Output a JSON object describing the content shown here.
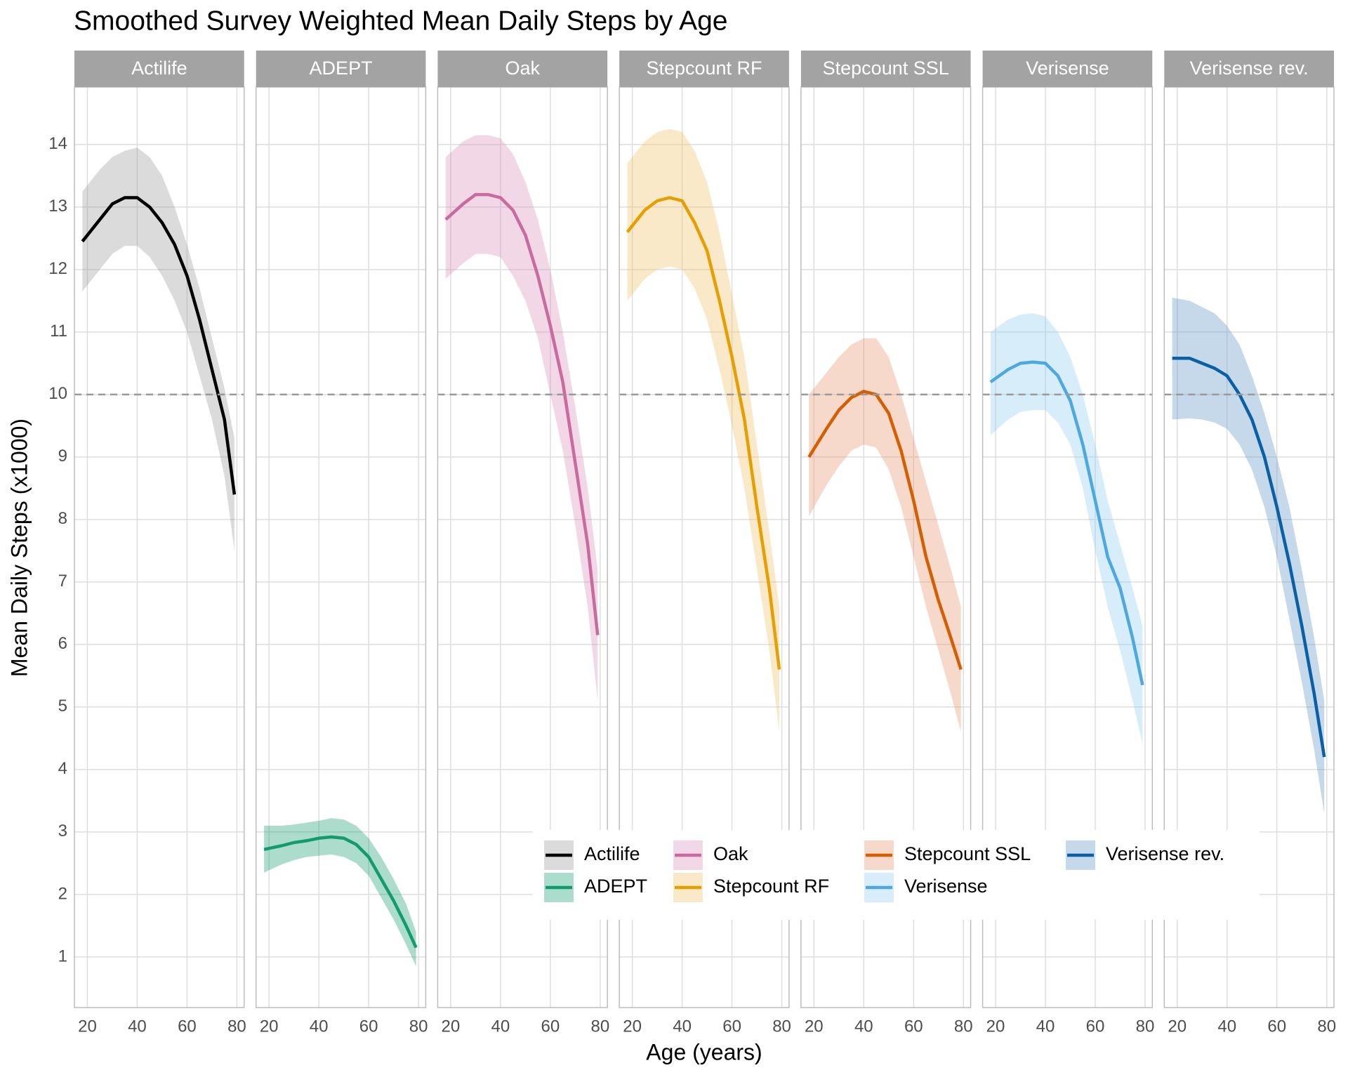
{
  "chart_data": {
    "type": "line",
    "title": "Smoothed Survey Weighted Mean Daily Steps by Age",
    "x_label": "Age (years)",
    "y_label": "Mean Daily Steps (x1000)",
    "x": [
      18,
      25,
      30,
      35,
      40,
      45,
      50,
      55,
      60,
      65,
      70,
      75,
      79
    ],
    "xlim": [
      14.8,
      82.9
    ],
    "xticks": [
      20,
      40,
      60,
      80
    ],
    "ylim": [
      0.19,
      14.92
    ],
    "yticks": [
      1,
      2,
      3,
      4,
      5,
      6,
      7,
      8,
      9,
      10,
      11,
      12,
      13,
      14
    ],
    "hline": 10,
    "grid": true,
    "series": [
      {
        "name": "Actilife",
        "color": "#000000",
        "fill": "#999999",
        "values": [
          12.45,
          12.8,
          13.05,
          13.15,
          13.15,
          13.0,
          12.75,
          12.4,
          11.9,
          11.2,
          10.4,
          9.6,
          8.4
        ],
        "upper": [
          13.25,
          13.6,
          13.8,
          13.9,
          13.95,
          13.8,
          13.5,
          13.0,
          12.4,
          11.7,
          10.9,
          10.1,
          9.3
        ],
        "lower": [
          11.65,
          12.0,
          12.25,
          12.38,
          12.38,
          12.2,
          11.9,
          11.5,
          11.0,
          10.3,
          9.6,
          8.7,
          7.5
        ]
      },
      {
        "name": "ADEPT",
        "color": "#129b6e",
        "fill": "#129b6e",
        "values": [
          2.72,
          2.78,
          2.83,
          2.86,
          2.9,
          2.92,
          2.9,
          2.8,
          2.6,
          2.25,
          1.9,
          1.5,
          1.15
        ],
        "upper": [
          3.1,
          3.1,
          3.12,
          3.15,
          3.18,
          3.22,
          3.2,
          3.1,
          2.9,
          2.6,
          2.25,
          1.85,
          1.4
        ],
        "lower": [
          2.35,
          2.48,
          2.55,
          2.6,
          2.62,
          2.64,
          2.6,
          2.5,
          2.3,
          1.95,
          1.6,
          1.2,
          0.85
        ]
      },
      {
        "name": "Oak",
        "color": "#c86b9e",
        "fill": "#d98bb8",
        "values": [
          12.8,
          13.05,
          13.2,
          13.2,
          13.15,
          12.95,
          12.55,
          11.9,
          11.1,
          10.2,
          8.9,
          7.6,
          6.15
        ],
        "upper": [
          13.8,
          14.05,
          14.15,
          14.15,
          14.1,
          13.85,
          13.4,
          12.8,
          12.0,
          11.0,
          9.8,
          8.5,
          7.2
        ],
        "lower": [
          11.85,
          12.1,
          12.25,
          12.25,
          12.2,
          11.9,
          11.5,
          10.9,
          10.0,
          9.1,
          7.9,
          6.6,
          5.1
        ]
      },
      {
        "name": "Stepcount RF",
        "color": "#e69f00",
        "fill": "#f0c060",
        "values": [
          12.6,
          12.95,
          13.1,
          13.15,
          13.1,
          12.75,
          12.3,
          11.5,
          10.6,
          9.6,
          8.2,
          6.9,
          5.6
        ],
        "upper": [
          13.7,
          14.05,
          14.2,
          14.25,
          14.2,
          13.9,
          13.4,
          12.6,
          11.6,
          10.6,
          9.2,
          7.8,
          6.6
        ],
        "lower": [
          11.5,
          11.85,
          12.0,
          12.05,
          12.0,
          11.7,
          11.2,
          10.4,
          9.5,
          8.5,
          7.2,
          5.9,
          4.6
        ]
      },
      {
        "name": "Stepcount SSL",
        "color": "#d55e00",
        "fill": "#e8936a",
        "values": [
          9.0,
          9.45,
          9.75,
          9.95,
          10.05,
          10.0,
          9.7,
          9.1,
          8.3,
          7.4,
          6.7,
          6.1,
          5.6
        ],
        "upper": [
          10.0,
          10.35,
          10.6,
          10.8,
          10.9,
          10.9,
          10.6,
          10.0,
          9.3,
          8.6,
          7.9,
          7.2,
          6.6
        ],
        "lower": [
          8.05,
          8.55,
          8.85,
          9.1,
          9.2,
          9.15,
          8.8,
          8.2,
          7.4,
          6.6,
          5.9,
          5.2,
          4.6
        ]
      },
      {
        "name": "Verisense",
        "color": "#4ea8e0",
        "fill": "#8fcbf0",
        "values": [
          10.2,
          10.4,
          10.5,
          10.52,
          10.5,
          10.3,
          9.9,
          9.2,
          8.3,
          7.4,
          6.9,
          6.1,
          5.35
        ],
        "upper": [
          11.0,
          11.2,
          11.28,
          11.3,
          11.25,
          11.0,
          10.6,
          10.0,
          9.2,
          8.3,
          7.6,
          6.9,
          6.3
        ],
        "lower": [
          9.35,
          9.6,
          9.72,
          9.75,
          9.75,
          9.55,
          9.2,
          8.5,
          7.5,
          6.6,
          5.9,
          5.1,
          4.4
        ]
      },
      {
        "name": "Verisense rev.",
        "color": "#0b5fa5",
        "fill": "#5d93c4",
        "values": [
          10.58,
          10.58,
          10.5,
          10.42,
          10.3,
          10.0,
          9.6,
          9.0,
          8.2,
          7.3,
          6.3,
          5.2,
          4.2
        ],
        "upper": [
          11.55,
          11.5,
          11.4,
          11.3,
          11.1,
          10.8,
          10.3,
          9.7,
          9.0,
          8.2,
          7.2,
          6.1,
          5.1
        ],
        "lower": [
          9.6,
          9.62,
          9.6,
          9.55,
          9.45,
          9.2,
          8.8,
          8.2,
          7.4,
          6.4,
          5.4,
          4.3,
          3.3
        ]
      }
    ]
  }
}
